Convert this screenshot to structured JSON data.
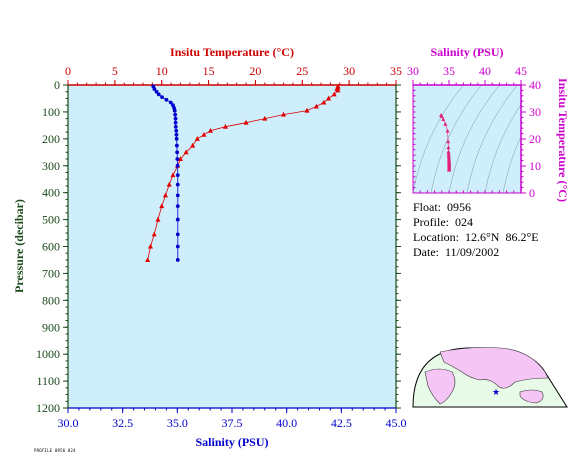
{
  "colors": {
    "background": "#cdeefa",
    "temperature": "#e00000",
    "salinity_dots": "#0000cc",
    "temp_axis": "#cc0000",
    "sal_axis_bottom": "#0000cc",
    "pressure_axis": "#1a4a1a",
    "ts_axis": "#cc00cc",
    "map_land": "#f5c6f5",
    "map_ocean": "#e8fbe8"
  },
  "chart_data": [
    {
      "type": "scatter",
      "name": "profile",
      "title": "",
      "top_axis": {
        "label": "Insitu Temperature (°C)",
        "range": [
          0,
          35
        ],
        "ticks": [
          "0",
          "5",
          "10",
          "15",
          "20",
          "25",
          "30",
          "35"
        ]
      },
      "bottom_axis": {
        "label": "Salinity (PSU)",
        "range": [
          30.0,
          45.0
        ],
        "ticks": [
          "30.0",
          "32.5",
          "35.0",
          "37.5",
          "40.0",
          "42.5",
          "45.0"
        ]
      },
      "left_axis": {
        "label": "Pressure (decibar)",
        "range": [
          0,
          1200
        ],
        "inverted": true,
        "ticks": [
          "0",
          "100",
          "200",
          "300",
          "400",
          "500",
          "600",
          "700",
          "800",
          "900",
          "1000",
          "1100",
          "1200"
        ]
      },
      "temperature_series": {
        "marker": "triangle",
        "points": [
          {
            "t": 28.8,
            "p": 5
          },
          {
            "t": 28.8,
            "p": 10
          },
          {
            "t": 28.7,
            "p": 15
          },
          {
            "t": 28.8,
            "p": 20
          },
          {
            "t": 28.4,
            "p": 35
          },
          {
            "t": 27.8,
            "p": 50
          },
          {
            "t": 27.3,
            "p": 65
          },
          {
            "t": 26.5,
            "p": 80
          },
          {
            "t": 25.5,
            "p": 95
          },
          {
            "t": 23.0,
            "p": 110
          },
          {
            "t": 21.0,
            "p": 125
          },
          {
            "t": 19.0,
            "p": 140
          },
          {
            "t": 16.8,
            "p": 155
          },
          {
            "t": 15.2,
            "p": 170
          },
          {
            "t": 14.5,
            "p": 185
          },
          {
            "t": 13.8,
            "p": 200
          },
          {
            "t": 13.3,
            "p": 225
          },
          {
            "t": 12.6,
            "p": 250
          },
          {
            "t": 12.0,
            "p": 275
          },
          {
            "t": 11.7,
            "p": 300
          },
          {
            "t": 11.2,
            "p": 335
          },
          {
            "t": 10.8,
            "p": 370
          },
          {
            "t": 10.4,
            "p": 410
          },
          {
            "t": 10.0,
            "p": 450
          },
          {
            "t": 9.6,
            "p": 500
          },
          {
            "t": 9.2,
            "p": 555
          },
          {
            "t": 8.8,
            "p": 600
          },
          {
            "t": 8.5,
            "p": 650
          }
        ]
      },
      "salinity_series": {
        "marker": "dot",
        "points": [
          {
            "s": 33.9,
            "p": 5
          },
          {
            "s": 33.95,
            "p": 15
          },
          {
            "s": 34.05,
            "p": 25
          },
          {
            "s": 34.15,
            "p": 35
          },
          {
            "s": 34.3,
            "p": 45
          },
          {
            "s": 34.5,
            "p": 55
          },
          {
            "s": 34.7,
            "p": 65
          },
          {
            "s": 34.8,
            "p": 75
          },
          {
            "s": 34.85,
            "p": 85
          },
          {
            "s": 34.88,
            "p": 95
          },
          {
            "s": 34.9,
            "p": 110
          },
          {
            "s": 34.92,
            "p": 125
          },
          {
            "s": 34.92,
            "p": 140
          },
          {
            "s": 34.93,
            "p": 155
          },
          {
            "s": 34.95,
            "p": 170
          },
          {
            "s": 34.96,
            "p": 185
          },
          {
            "s": 34.97,
            "p": 200
          },
          {
            "s": 34.98,
            "p": 225
          },
          {
            "s": 34.99,
            "p": 250
          },
          {
            "s": 35.0,
            "p": 275
          },
          {
            "s": 35.01,
            "p": 300
          },
          {
            "s": 35.02,
            "p": 335
          },
          {
            "s": 35.02,
            "p": 370
          },
          {
            "s": 35.02,
            "p": 410
          },
          {
            "s": 35.02,
            "p": 450
          },
          {
            "s": 35.02,
            "p": 500
          },
          {
            "s": 35.02,
            "p": 555
          },
          {
            "s": 35.02,
            "p": 600
          },
          {
            "s": 35.02,
            "p": 650
          }
        ]
      }
    },
    {
      "type": "scatter",
      "name": "ts_diagram",
      "title": "",
      "x_axis": {
        "label": "Salinity (PSU)",
        "range": [
          30,
          45
        ],
        "ticks": [
          "30",
          "35",
          "40",
          "45"
        ]
      },
      "y_axis": {
        "label": "Insitu Temperature (°C)",
        "range": [
          0,
          40
        ],
        "ticks": [
          "0",
          "10",
          "20",
          "30",
          "40"
        ]
      },
      "points": [
        {
          "s": 33.9,
          "t": 28.8
        },
        {
          "s": 34.0,
          "t": 28.4
        },
        {
          "s": 34.2,
          "t": 27.3
        },
        {
          "s": 34.5,
          "t": 25.5
        },
        {
          "s": 34.8,
          "t": 23.0
        },
        {
          "s": 34.88,
          "t": 19.0
        },
        {
          "s": 34.92,
          "t": 16.8
        },
        {
          "s": 34.93,
          "t": 15.2
        },
        {
          "s": 34.95,
          "t": 14.5
        },
        {
          "s": 34.97,
          "t": 13.8
        },
        {
          "s": 34.98,
          "t": 13.3
        },
        {
          "s": 34.99,
          "t": 12.6
        },
        {
          "s": 35.0,
          "t": 12.0
        },
        {
          "s": 35.01,
          "t": 11.7
        },
        {
          "s": 35.02,
          "t": 11.2
        },
        {
          "s": 35.02,
          "t": 10.8
        },
        {
          "s": 35.02,
          "t": 10.4
        },
        {
          "s": 35.02,
          "t": 10.0
        },
        {
          "s": 35.02,
          "t": 9.6
        },
        {
          "s": 35.02,
          "t": 9.2
        },
        {
          "s": 35.02,
          "t": 8.8
        },
        {
          "s": 35.02,
          "t": 8.5
        }
      ]
    }
  ],
  "info": {
    "float": "Float:  0956",
    "profile": "Profile:  024",
    "location": "Location:  12.6°N  86.2°E",
    "date": "Date:  11/09/2002"
  },
  "footer_text": "PROFILE 0956 024",
  "map": {
    "marker": "star",
    "marker_color": "#0000cc"
  }
}
